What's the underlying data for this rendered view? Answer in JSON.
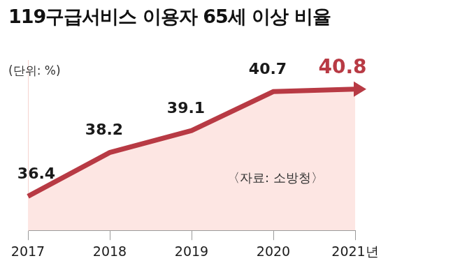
{
  "chart_data": {
    "type": "line",
    "title": "119구급서비스 이용자 65세 이상 비율",
    "subtitle": "(단위: %)",
    "source": "〈자료: 소방청〉",
    "categories": [
      "2017",
      "2018",
      "2019",
      "2020",
      "2021년"
    ],
    "values": [
      36.4,
      38.2,
      39.1,
      40.7,
      40.8
    ],
    "color": "#b83a44",
    "ylim": [
      35,
      42
    ],
    "grid": false,
    "data_labels": true,
    "tick_labels": "x"
  }
}
